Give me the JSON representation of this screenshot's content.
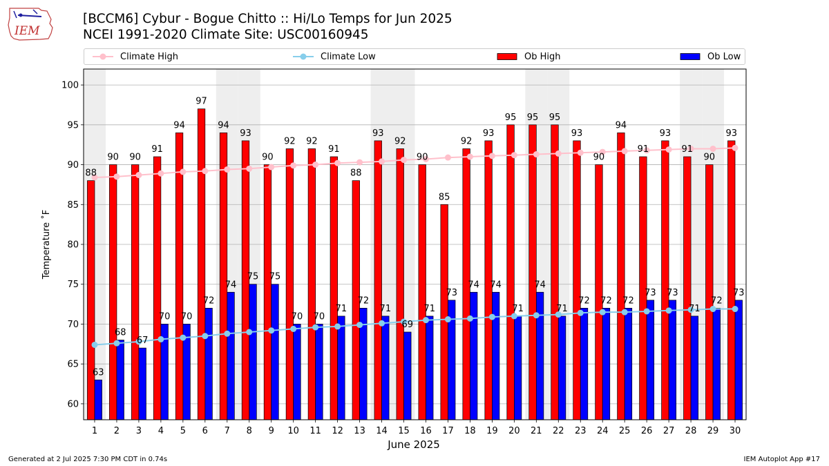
{
  "header": {
    "logo_text": "IEM",
    "title_line1": "[BCCM6] Cybur - Bogue Chitto :: Hi/Lo Temps for Jun 2025",
    "title_line2": "NCEI 1991-2020 Climate Site: USC00160945"
  },
  "footer": {
    "left": "Generated at 2 Jul 2025 7:30 PM CDT in 0.74s",
    "right": "IEM Autoplot App #17"
  },
  "colors": {
    "ob_high": "#ff0000",
    "ob_low": "#0000ff",
    "climate_high": "#ffc0cb",
    "climate_low": "#87ceeb",
    "weekend_band": "#eeeeee",
    "grid": "#b0b0b0"
  },
  "chart_data": {
    "type": "bar",
    "xlabel": "June 2025",
    "ylabel": "Temperature ˚F",
    "ylim": [
      58,
      102
    ],
    "yticks": [
      60,
      65,
      70,
      75,
      80,
      85,
      90,
      95,
      100
    ],
    "grid": true,
    "legend_position": "top",
    "categories": [
      "1",
      "2",
      "3",
      "4",
      "5",
      "6",
      "7",
      "8",
      "9",
      "10",
      "11",
      "12",
      "13",
      "14",
      "15",
      "16",
      "17",
      "18",
      "19",
      "20",
      "21",
      "22",
      "23",
      "24",
      "25",
      "26",
      "27",
      "28",
      "29",
      "30"
    ],
    "weekend_days": [
      1,
      7,
      8,
      14,
      15,
      21,
      22,
      28,
      29
    ],
    "series": [
      {
        "name": "Ob High",
        "kind": "bar",
        "values": [
          88,
          90,
          90,
          91,
          94,
          97,
          94,
          93,
          90,
          92,
          92,
          91,
          88,
          93,
          92,
          90,
          85,
          92,
          93,
          95,
          95,
          95,
          93,
          90,
          94,
          91,
          93,
          91,
          90,
          93
        ]
      },
      {
        "name": "Ob Low",
        "kind": "bar",
        "values": [
          63,
          68,
          67,
          70,
          70,
          72,
          74,
          75,
          75,
          70,
          70,
          71,
          72,
          71,
          69,
          71,
          73,
          74,
          74,
          71,
          74,
          71,
          72,
          72,
          72,
          73,
          73,
          71,
          72,
          73
        ]
      },
      {
        "name": "Climate High",
        "kind": "line",
        "values": [
          88.4,
          88.5,
          88.7,
          88.9,
          89.1,
          89.2,
          89.4,
          89.5,
          89.7,
          89.9,
          90.0,
          90.2,
          90.3,
          90.4,
          90.6,
          90.7,
          90.9,
          91.0,
          91.1,
          91.2,
          91.3,
          91.4,
          91.5,
          91.6,
          91.7,
          91.8,
          91.9,
          92.0,
          92.0,
          92.1
        ]
      },
      {
        "name": "Climate Low",
        "kind": "line",
        "values": [
          67.4,
          67.6,
          67.8,
          68.1,
          68.3,
          68.5,
          68.8,
          69.0,
          69.2,
          69.4,
          69.6,
          69.7,
          69.9,
          70.1,
          70.3,
          70.5,
          70.6,
          70.7,
          70.9,
          71.0,
          71.1,
          71.2,
          71.4,
          71.5,
          71.5,
          71.6,
          71.7,
          71.8,
          71.9,
          71.9
        ]
      }
    ]
  }
}
